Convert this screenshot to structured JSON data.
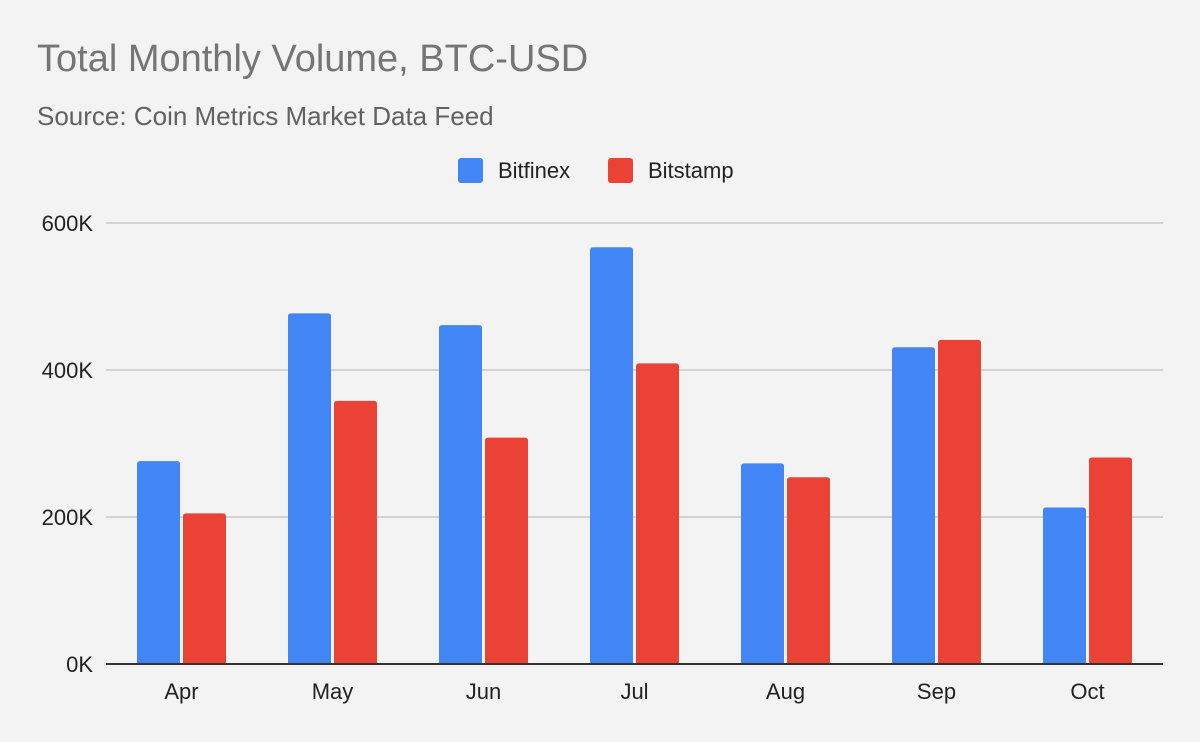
{
  "chart_data": {
    "type": "bar",
    "title": "Total Monthly Volume, BTC-USD",
    "subtitle": "Source: Coin Metrics Market Data Feed",
    "categories": [
      "Apr",
      "May",
      "Jun",
      "Jul",
      "Aug",
      "Sep",
      "Oct"
    ],
    "series": [
      {
        "name": "Bitfinex",
        "color": "#4285f4",
        "values": [
          276000,
          477000,
          461000,
          567000,
          273000,
          431000,
          213000
        ]
      },
      {
        "name": "Bitstamp",
        "color": "#ea4335",
        "values": [
          205000,
          358000,
          308000,
          409000,
          254000,
          441000,
          281000
        ]
      }
    ],
    "ylim": [
      0,
      600000
    ],
    "y_ticks": [
      0,
      200000,
      400000,
      600000
    ],
    "y_tick_labels": [
      "0K",
      "200K",
      "400K",
      "600K"
    ],
    "xlabel": "",
    "ylabel": "",
    "grid": true,
    "legend_position": "top-center"
  }
}
